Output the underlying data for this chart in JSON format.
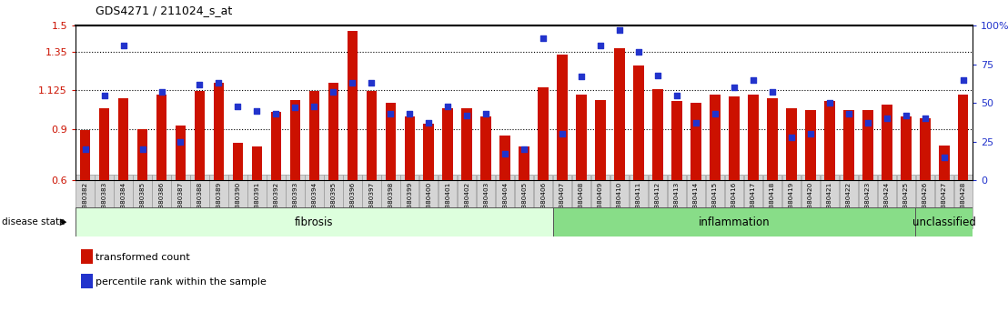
{
  "title": "GDS4271 / 211024_s_at",
  "samples": [
    "GSM380382",
    "GSM380383",
    "GSM380384",
    "GSM380385",
    "GSM380386",
    "GSM380387",
    "GSM380388",
    "GSM380389",
    "GSM380390",
    "GSM380391",
    "GSM380392",
    "GSM380393",
    "GSM380394",
    "GSM380395",
    "GSM380396",
    "GSM380397",
    "GSM380398",
    "GSM380399",
    "GSM380400",
    "GSM380401",
    "GSM380402",
    "GSM380403",
    "GSM380404",
    "GSM380405",
    "GSM380406",
    "GSM380407",
    "GSM380408",
    "GSM380409",
    "GSM380410",
    "GSM380411",
    "GSM380412",
    "GSM380413",
    "GSM380414",
    "GSM380415",
    "GSM380416",
    "GSM380417",
    "GSM380418",
    "GSM380419",
    "GSM380420",
    "GSM380421",
    "GSM380422",
    "GSM380423",
    "GSM380424",
    "GSM380425",
    "GSM380426",
    "GSM380427",
    "GSM380428"
  ],
  "bar_values": [
    0.895,
    1.02,
    1.08,
    0.9,
    1.1,
    0.92,
    1.12,
    1.17,
    0.82,
    0.795,
    1.0,
    1.07,
    1.12,
    1.17,
    1.47,
    1.12,
    1.05,
    0.97,
    0.93,
    1.02,
    1.02,
    0.97,
    0.86,
    0.795,
    1.14,
    1.33,
    1.1,
    1.07,
    1.37,
    1.27,
    1.13,
    1.06,
    1.05,
    1.1,
    1.09,
    1.1,
    1.08,
    1.02,
    1.01,
    1.06,
    1.01,
    1.01,
    1.04,
    0.97,
    0.96,
    0.8,
    1.1
  ],
  "percentile_values": [
    20,
    55,
    87,
    20,
    57,
    25,
    62,
    63,
    48,
    45,
    43,
    47,
    48,
    57,
    63,
    63,
    43,
    43,
    37,
    48,
    42,
    43,
    17,
    20,
    92,
    30,
    67,
    87,
    97,
    83,
    68,
    55,
    37,
    43,
    60,
    65,
    57,
    28,
    30,
    50,
    43,
    37,
    40,
    42,
    40,
    15,
    65
  ],
  "groups": [
    {
      "label": "fibrosis",
      "start": 0,
      "end": 24,
      "color": "#ddffdd"
    },
    {
      "label": "inflammation",
      "start": 25,
      "end": 43,
      "color": "#88dd88"
    },
    {
      "label": "unclassified",
      "start": 44,
      "end": 46,
      "color": "#88dd88"
    }
  ],
  "bar_color": "#cc1100",
  "dot_color": "#2233cc",
  "ylim_left": [
    0.6,
    1.5
  ],
  "ylim_right": [
    0,
    100
  ],
  "yticks_left": [
    0.6,
    0.9,
    1.125,
    1.35,
    1.5
  ],
  "ytick_labels_left": [
    "0.6",
    "0.9",
    "1.125",
    "1.35",
    "1.5"
  ],
  "yticks_right": [
    0,
    25,
    50,
    75,
    100
  ],
  "ytick_labels_right": [
    "0",
    "25",
    "50",
    "75",
    "100%"
  ],
  "hlines": [
    0.9,
    1.125,
    1.35
  ],
  "legend_items": [
    {
      "label": "transformed count",
      "color": "#cc1100"
    },
    {
      "label": "percentile rank within the sample",
      "color": "#2233cc"
    }
  ],
  "disease_state_label": "disease state"
}
